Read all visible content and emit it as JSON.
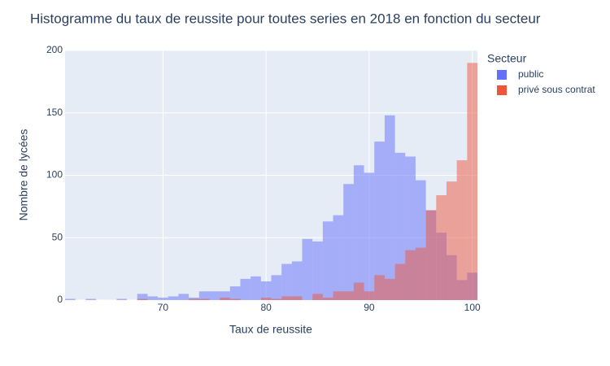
{
  "chart_data": {
    "type": "histogram",
    "title": "Histogramme du taux de reussite pour toutes series en 2018 en fonction du secteur",
    "x_label": "Taux de reussite",
    "y_label": "Nombre de lycées",
    "legend_title": "Secteur",
    "legend_position": "right",
    "bins": [
      60.5,
      61.5,
      62.5,
      63.5,
      64.5,
      65.5,
      66.5,
      67.5,
      68.5,
      69.5,
      70.5,
      71.5,
      72.5,
      73.5,
      74.5,
      75.5,
      76.5,
      77.5,
      78.5,
      79.5,
      80.5,
      81.5,
      82.5,
      83.5,
      84.5,
      85.5,
      86.5,
      87.5,
      88.5,
      89.5,
      90.5,
      91.5,
      92.5,
      93.5,
      94.5,
      95.5,
      96.5,
      97.5,
      98.5,
      99.5,
      100.5
    ],
    "series": [
      {
        "name": "public",
        "color": "#636efa",
        "opacity": 0.5,
        "values": [
          1,
          0,
          1,
          0,
          0,
          1,
          0,
          5,
          3,
          2,
          3,
          5,
          2,
          7,
          7,
          7,
          11,
          17,
          19,
          15,
          20,
          29,
          31,
          49,
          47,
          63,
          68,
          93,
          108,
          102,
          127,
          148,
          118,
          115,
          96,
          72,
          54,
          36,
          16,
          22
        ]
      },
      {
        "name": "privé sous contrat",
        "color": "#ef553b",
        "opacity": 0.5,
        "values": [
          0,
          0,
          0,
          0,
          0,
          0,
          0,
          1,
          0,
          0,
          0,
          0,
          1,
          1,
          0,
          2,
          1,
          0,
          0,
          2,
          1,
          3,
          3,
          0,
          5,
          2,
          7,
          7,
          14,
          7,
          20,
          17,
          29,
          40,
          42,
          72,
          84,
          95,
          112,
          190
        ]
      }
    ],
    "xlim": [
      60.5,
      100.5
    ],
    "xticks": [
      70,
      80,
      90,
      100
    ],
    "ylim": [
      0,
      200
    ],
    "yticks": [
      0,
      50,
      100,
      150,
      200
    ],
    "grid": true
  }
}
